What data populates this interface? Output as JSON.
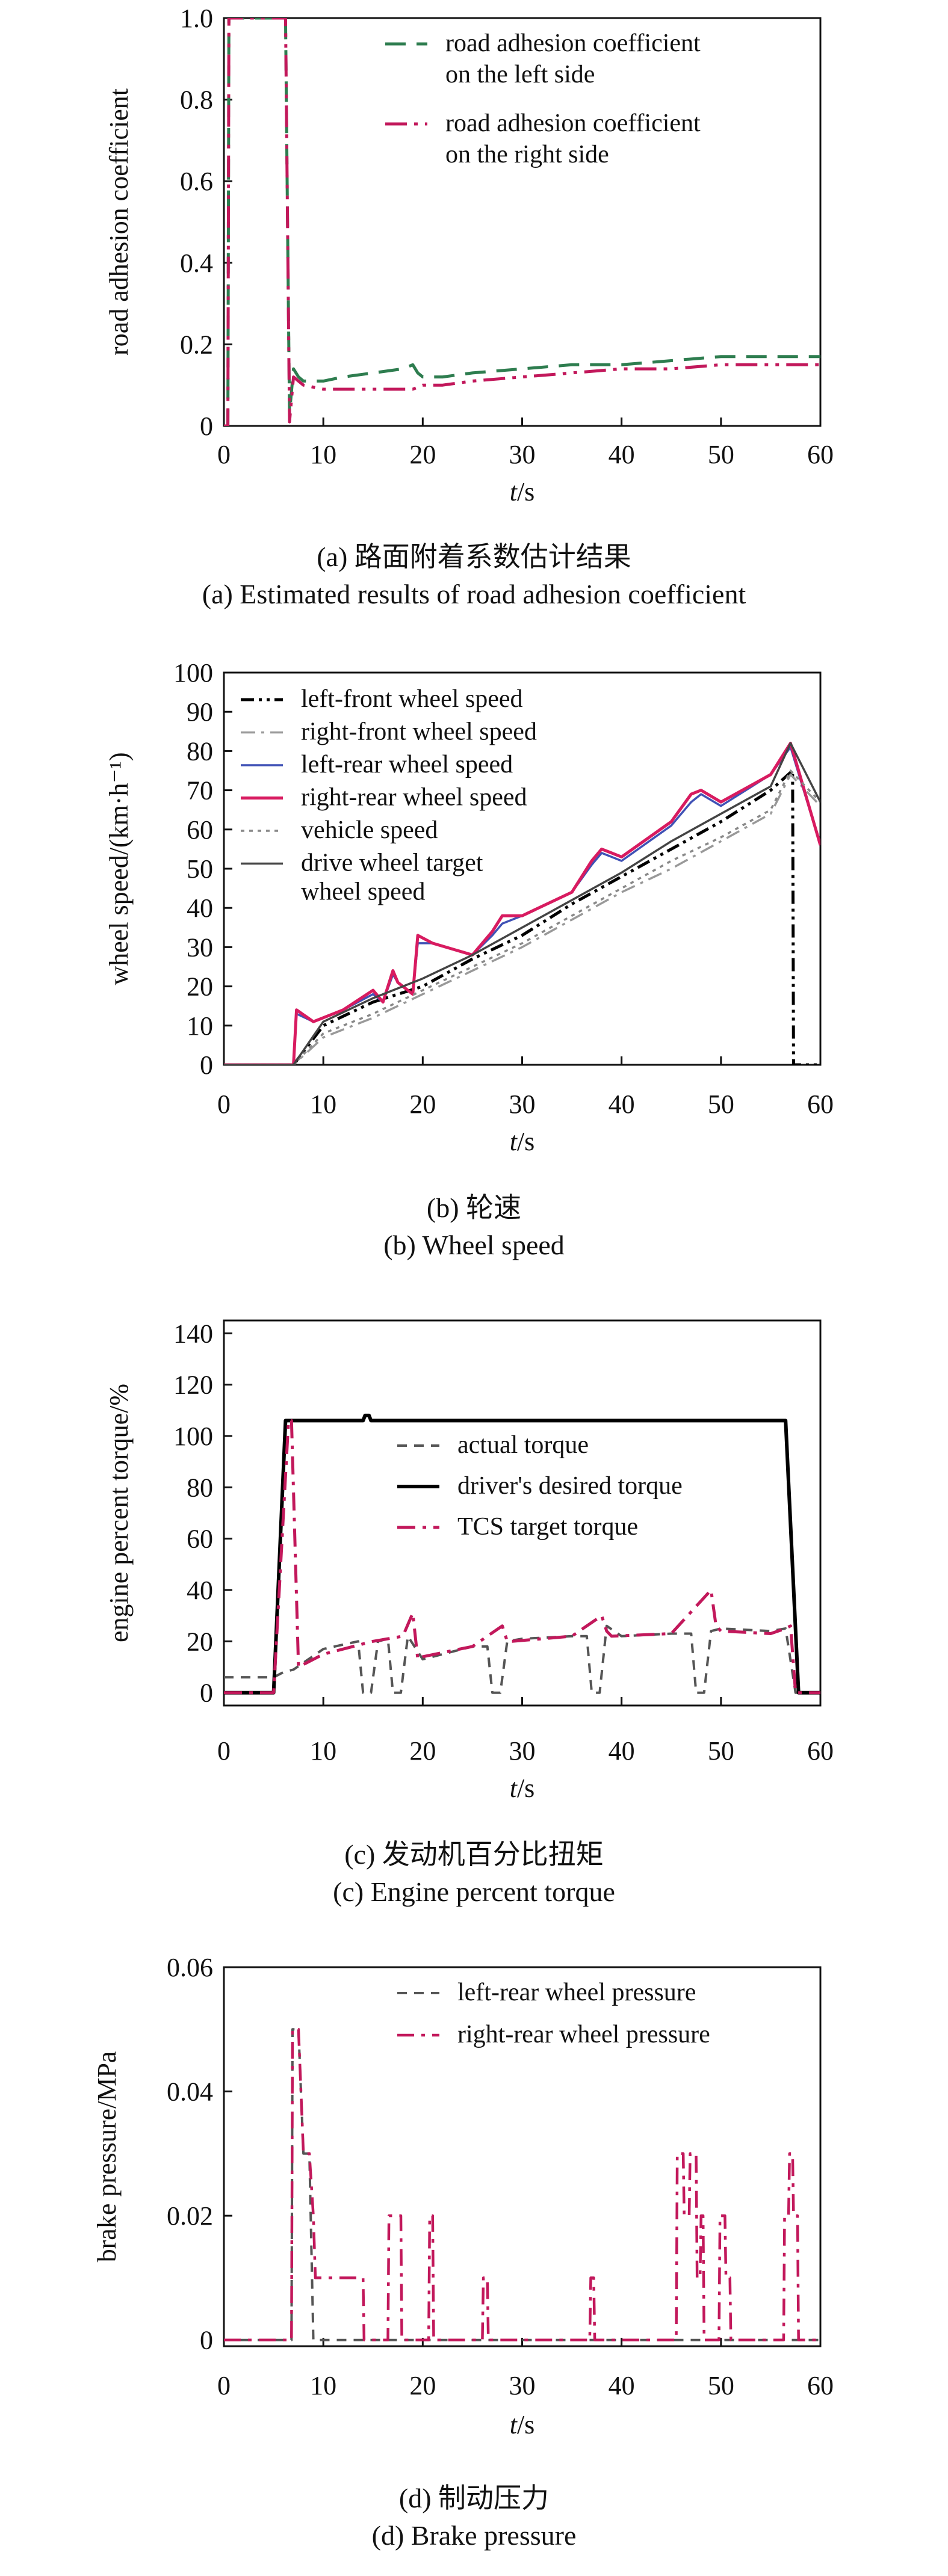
{
  "chart_data": [
    {
      "type": "line",
      "ylabel": "road adhesion coefficient",
      "xlabel_t": "t",
      "xlabel_unit": "/s",
      "xlim": [
        0,
        60
      ],
      "ylim": [
        0,
        1.0
      ],
      "xticks": [
        "0",
        "10",
        "20",
        "30",
        "40",
        "50",
        "60"
      ],
      "yticks": [
        "0",
        "0.2",
        "0.4",
        "0.6",
        "0.8",
        "1.0"
      ],
      "caption_cn": "(a) 路面附着系数估计结果",
      "caption_en": "(a) Estimated results of road adhesion coefficient",
      "series": [
        {
          "name": "road adhesion coefficient on the left side",
          "color": "#2e7d4f",
          "x": [
            0,
            0.4,
            0.5,
            6.2,
            6.4,
            6.6,
            7,
            7.5,
            8,
            10,
            12,
            15,
            18,
            19,
            19.5,
            20,
            22,
            25,
            30,
            35,
            40,
            45,
            50,
            55,
            60
          ],
          "y": [
            0.0,
            0.0,
            1.0,
            1.0,
            0.5,
            0.03,
            0.14,
            0.12,
            0.11,
            0.11,
            0.12,
            0.13,
            0.14,
            0.15,
            0.13,
            0.12,
            0.12,
            0.13,
            0.14,
            0.15,
            0.15,
            0.16,
            0.17,
            0.17,
            0.17
          ]
        },
        {
          "name": "road adhesion coefficient on the right side",
          "color": "#c2185b",
          "x": [
            0,
            0.4,
            0.5,
            6.2,
            6.4,
            6.6,
            7,
            7.5,
            8,
            10,
            12,
            15,
            18,
            19,
            20,
            22,
            25,
            30,
            35,
            40,
            45,
            50,
            55,
            60
          ],
          "y": [
            0.0,
            0.0,
            1.0,
            1.0,
            0.5,
            0.01,
            0.12,
            0.11,
            0.1,
            0.09,
            0.09,
            0.09,
            0.09,
            0.09,
            0.1,
            0.1,
            0.11,
            0.12,
            0.13,
            0.14,
            0.14,
            0.15,
            0.15,
            0.15
          ]
        }
      ]
    },
    {
      "type": "line",
      "ylabel": "wheel speed/(km·h⁻¹)",
      "xlabel_t": "t",
      "xlabel_unit": "/s",
      "xlim": [
        0,
        60
      ],
      "ylim": [
        0,
        100
      ],
      "xticks": [
        "0",
        "10",
        "20",
        "30",
        "40",
        "50",
        "60"
      ],
      "yticks": [
        "0",
        "10",
        "20",
        "30",
        "40",
        "50",
        "60",
        "70",
        "80",
        "90",
        "100"
      ],
      "caption_cn": "(b) 轮速",
      "caption_en": "(b) Wheel speed",
      "series": [
        {
          "name": "left-front wheel speed",
          "color": "#000000",
          "x": [
            0,
            7,
            10,
            15,
            20,
            25,
            30,
            35,
            40,
            45,
            50,
            55,
            57.2,
            57.3,
            60
          ],
          "y": [
            0,
            0,
            10,
            16,
            20,
            27,
            33,
            41,
            48,
            55,
            62,
            70,
            75,
            0,
            0
          ]
        },
        {
          "name": "right-front wheel speed",
          "color": "#999999",
          "x": [
            0,
            7,
            10,
            15,
            20,
            25,
            30,
            35,
            40,
            45,
            50,
            55,
            57,
            60
          ],
          "y": [
            0,
            0,
            7,
            12,
            18,
            24,
            30,
            37,
            44,
            50,
            57,
            64,
            74,
            66
          ]
        },
        {
          "name": "left-rear wheel speed",
          "color": "#3f51b5",
          "x": [
            0,
            7,
            7.3,
            9,
            12,
            15,
            16,
            17,
            17.5,
            19,
            19.5,
            21,
            25,
            27,
            28,
            30,
            35,
            37,
            38,
            40,
            45,
            47,
            48,
            50,
            55,
            57,
            60
          ],
          "y": [
            0,
            0,
            13,
            11,
            14,
            18,
            16,
            23,
            21,
            18,
            31,
            31,
            28,
            33,
            36,
            38,
            44,
            51,
            54,
            52,
            61,
            67,
            69,
            66,
            74,
            81,
            56
          ]
        },
        {
          "name": "right-rear wheel speed",
          "color": "#d81b60",
          "x": [
            0,
            7,
            7.3,
            9,
            12,
            15,
            16,
            17,
            17.5,
            19,
            19.5,
            21,
            25,
            27,
            28,
            30,
            35,
            37,
            38,
            40,
            45,
            47,
            48,
            50,
            55,
            57,
            60
          ],
          "y": [
            0,
            0,
            14,
            11,
            14,
            19,
            16,
            24,
            21,
            18,
            33,
            31,
            28,
            34,
            38,
            38,
            44,
            52,
            55,
            53,
            62,
            69,
            70,
            67,
            74,
            82,
            56
          ]
        },
        {
          "name": "vehicle speed",
          "color": "#888888",
          "x": [
            0,
            7,
            10,
            15,
            20,
            25,
            30,
            35,
            40,
            45,
            50,
            55,
            57,
            60
          ],
          "y": [
            0,
            0,
            8,
            13,
            19,
            25,
            31,
            38,
            45,
            52,
            58,
            65,
            75,
            67
          ]
        },
        {
          "name": "drive wheel target wheel speed",
          "color": "#444444",
          "x": [
            0,
            7,
            10,
            15,
            20,
            25,
            30,
            35,
            40,
            45,
            50,
            55,
            57,
            60
          ],
          "y": [
            0,
            0,
            11,
            17,
            22,
            28,
            35,
            42,
            49,
            57,
            64,
            71,
            82,
            67
          ]
        }
      ]
    },
    {
      "type": "line",
      "ylabel": "engine percent torque/%",
      "xlabel_t": "t",
      "xlabel_unit": "/s",
      "xlim": [
        0,
        60
      ],
      "ylim": [
        -5,
        145
      ],
      "xticks": [
        "0",
        "10",
        "20",
        "30",
        "40",
        "50",
        "60"
      ],
      "yticks": [
        "0",
        "20",
        "40",
        "60",
        "80",
        "100",
        "120",
        "140"
      ],
      "caption_cn": "(c) 发动机百分比扭矩",
      "caption_en": "(c) Engine percent torque",
      "series": [
        {
          "name": "actual torque",
          "color": "#555555",
          "x": [
            0,
            5,
            6,
            7,
            10,
            13.5,
            14,
            14.8,
            15.5,
            16.5,
            17,
            17.8,
            18.5,
            20,
            25,
            26.5,
            27,
            27.8,
            28.5,
            30,
            35,
            36.5,
            37,
            37.8,
            38.5,
            40,
            45,
            47,
            47.5,
            48.3,
            49,
            50,
            55,
            56.5,
            57.5,
            58,
            60
          ],
          "y": [
            6,
            6,
            8,
            9,
            17,
            20,
            0,
            0,
            20,
            21,
            0,
            0,
            22,
            13,
            18,
            18,
            0,
            0,
            20,
            21,
            22,
            22,
            0,
            0,
            26,
            22,
            23,
            23,
            0,
            0,
            24,
            25,
            24,
            25,
            0,
            0,
            0
          ]
        },
        {
          "name": "driver's desired torque",
          "color": "#000000",
          "x": [
            0,
            5,
            6.2,
            14,
            14.2,
            14.6,
            14.8,
            56.5,
            57.8,
            60
          ],
          "y": [
            0,
            0,
            106,
            106,
            108,
            108,
            106,
            106,
            0,
            0
          ]
        },
        {
          "name": "TCS target torque",
          "color": "#c2185b",
          "x": [
            0,
            5,
            6.5,
            6.8,
            7.5,
            10,
            15,
            18,
            19,
            19.5,
            20,
            25,
            28,
            28.5,
            29,
            35,
            38,
            38.5,
            39,
            45,
            49,
            49.5,
            50,
            55,
            56.5,
            57,
            57.5,
            60
          ],
          "y": [
            0,
            0,
            106,
            106,
            10,
            15,
            20,
            22,
            31,
            13,
            14,
            18,
            26,
            20,
            20,
            22,
            30,
            24,
            22,
            23,
            40,
            26,
            24,
            23,
            25,
            26,
            0,
            0
          ]
        }
      ]
    },
    {
      "type": "line",
      "ylabel": "brake pressure/MPa",
      "xlabel_t": "t",
      "xlabel_unit": "/s",
      "xlim": [
        0,
        60
      ],
      "ylim": [
        -0.001,
        0.06
      ],
      "xticks": [
        "0",
        "10",
        "20",
        "30",
        "40",
        "50",
        "60"
      ],
      "yticks": [
        "0",
        "0.02",
        "0.04",
        "0.06"
      ],
      "caption_cn": "(d) 制动压力",
      "caption_en": "(d) Brake pressure",
      "series": [
        {
          "name": "left-rear wheel pressure",
          "color": "#555555",
          "x": [
            0,
            6.8,
            6.9,
            7.5,
            8,
            8.6,
            9,
            14,
            14.1,
            60
          ],
          "y": [
            0,
            0,
            0.05,
            0.05,
            0.03,
            0.03,
            0.0,
            0.0,
            0,
            0
          ]
        },
        {
          "name": "right-rear wheel pressure",
          "color": "#c2185b",
          "x": [
            0,
            6.8,
            6.9,
            7.5,
            8,
            8.6,
            9,
            9.2,
            14,
            14.1,
            16.5,
            16.6,
            17.8,
            17.9,
            20.6,
            20.7,
            21,
            21.1,
            26,
            26.1,
            26.5,
            26.6,
            36.8,
            36.9,
            37.2,
            37.3,
            45.5,
            45.6,
            46.2,
            46.3,
            46.8,
            46.9,
            47.5,
            47.6,
            47.9,
            48,
            48.2,
            48.3,
            49.8,
            49.9,
            50.4,
            50.5,
            50.9,
            51,
            56.3,
            56.4,
            56.8,
            56.9,
            57.2,
            57.3,
            57.7,
            57.8,
            60
          ],
          "y": [
            0,
            0,
            0.05,
            0.05,
            0.03,
            0.03,
            0.02,
            0.01,
            0.01,
            0,
            0,
            0.02,
            0.02,
            0,
            0,
            0.02,
            0.02,
            0,
            0,
            0.01,
            0.01,
            0,
            0,
            0.01,
            0.01,
            0,
            0,
            0.03,
            0.03,
            0.02,
            0.02,
            0.03,
            0.03,
            0.01,
            0.01,
            0.02,
            0.02,
            0,
            0,
            0.02,
            0.02,
            0.01,
            0.01,
            0,
            0,
            0.02,
            0.02,
            0.03,
            0.03,
            0.02,
            0.02,
            0,
            0
          ]
        }
      ]
    }
  ]
}
